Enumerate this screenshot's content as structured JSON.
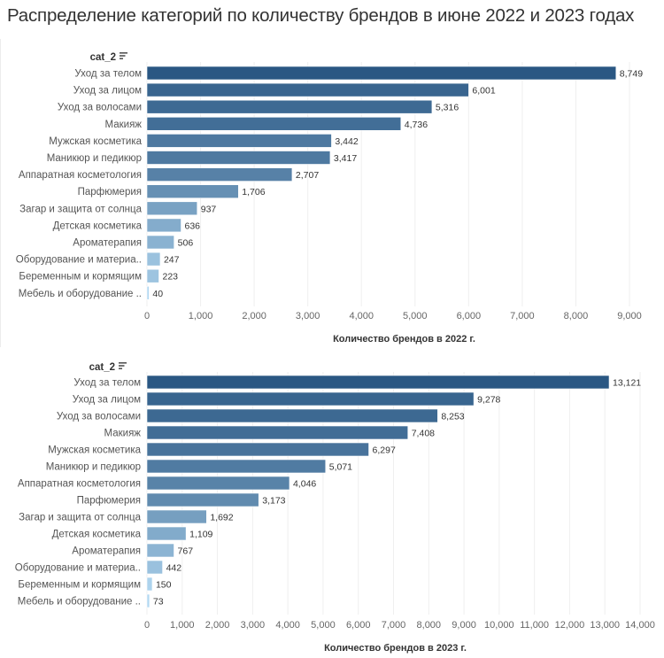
{
  "page": {
    "title": "Распределение категорий по количеству брендов в июне 2022 и 2023 годах"
  },
  "chart_data": [
    {
      "type": "bar",
      "orientation": "horizontal",
      "dimension_header": "cat_2",
      "sort_icon": "sort-descending-icon",
      "categories": [
        "Уход за телом",
        "Уход за лицом",
        "Уход за волосами",
        "Макияж",
        "Мужская косметика",
        "Маникюр и педикюр",
        "Аппаратная косметология",
        "Парфюмерия",
        "Загар и защита от солнца",
        "Детская косметика",
        "Ароматерапия",
        "Оборудование и материа..",
        "Беременным и кормящим",
        "Мебель и оборудование .."
      ],
      "values": [
        8749,
        6001,
        5316,
        4736,
        3442,
        3417,
        2707,
        1706,
        937,
        636,
        506,
        247,
        223,
        40
      ],
      "value_labels": [
        "8,749",
        "6,001",
        "5,316",
        "4,736",
        "3,442",
        "3,417",
        "2,707",
        "1,706",
        "937",
        "636",
        "506",
        "247",
        "223",
        "40"
      ],
      "xlabel": "Количество брендов в 2022 г.",
      "ylabel": "cat_2",
      "xlim": [
        0,
        9500
      ],
      "x_ticks": [
        0,
        1000,
        2000,
        3000,
        4000,
        5000,
        6000,
        7000,
        8000,
        9000
      ],
      "x_tick_labels": [
        "0",
        "1,000",
        "2,000",
        "3,000",
        "4,000",
        "5,000",
        "6,000",
        "7,000",
        "8,000",
        "9,000"
      ],
      "grid": "vertical",
      "color_scale": {
        "low": "#b3d9f2",
        "high": "#2a5783"
      }
    },
    {
      "type": "bar",
      "orientation": "horizontal",
      "dimension_header": "cat_2",
      "sort_icon": "sort-descending-icon",
      "categories": [
        "Уход за телом",
        "Уход за лицом",
        "Уход за волосами",
        "Макияж",
        "Мужская косметика",
        "Маникюр и педикюр",
        "Аппаратная косметология",
        "Парфюмерия",
        "Загар и защита от солнца",
        "Детская косметика",
        "Ароматерапия",
        "Оборудование и материа..",
        "Беременным и кормящим",
        "Мебель и оборудование .."
      ],
      "values": [
        13121,
        9278,
        8253,
        7408,
        6297,
        5071,
        4046,
        3173,
        1692,
        1109,
        767,
        442,
        150,
        73
      ],
      "value_labels": [
        "13,121",
        "9,278",
        "8,253",
        "7,408",
        "6,297",
        "5,071",
        "4,046",
        "3,173",
        "1,692",
        "1,109",
        "767",
        "442",
        "150",
        "73"
      ],
      "xlabel": "Количество брендов в 2023 г.",
      "ylabel": "cat_2",
      "xlim": [
        0,
        14500
      ],
      "x_ticks": [
        0,
        1000,
        2000,
        3000,
        4000,
        5000,
        6000,
        7000,
        8000,
        9000,
        10000,
        11000,
        12000,
        13000,
        14000
      ],
      "x_tick_labels": [
        "0",
        "1,000",
        "2,000",
        "3,000",
        "4,000",
        "5,000",
        "6,000",
        "7,000",
        "8,000",
        "9,000",
        "10,000",
        "11,000",
        "12,000",
        "13,000",
        "14,000"
      ],
      "grid": "vertical",
      "color_scale": {
        "low": "#b3d9f2",
        "high": "#2a5783"
      }
    }
  ]
}
